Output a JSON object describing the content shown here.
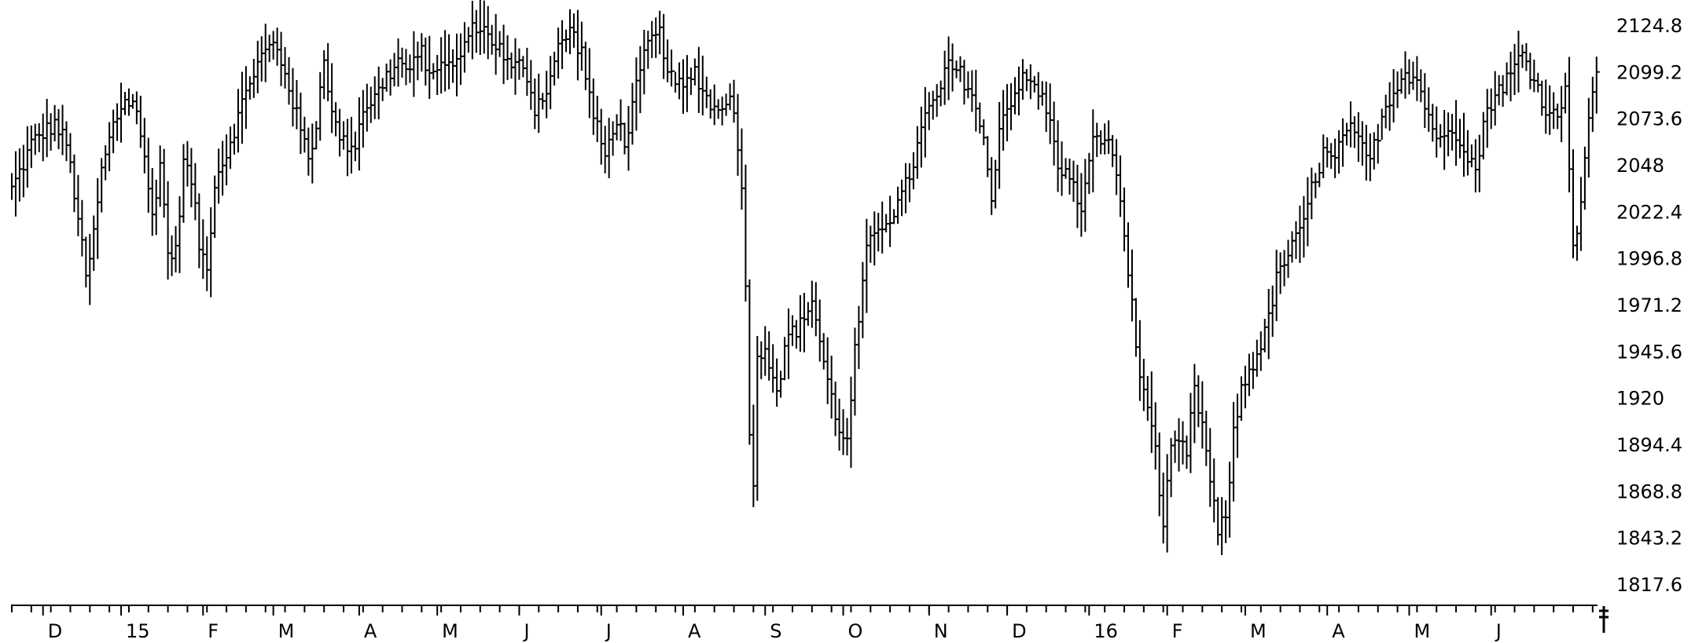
{
  "chart_data": {
    "type": "bar",
    "subtype": "ohlc",
    "title": "",
    "xlabel": "",
    "ylabel": "",
    "ylim": [
      1805,
      2140
    ],
    "grid": false,
    "colors": {
      "bars": "#000000",
      "axis": "#000000",
      "background": "#ffffff"
    },
    "yticks": [
      {
        "value": 2124.8,
        "label": "2124.8"
      },
      {
        "value": 2099.2,
        "label": "2099.2"
      },
      {
        "value": 2073.6,
        "label": "2073.6"
      },
      {
        "value": 2048,
        "label": "2048"
      },
      {
        "value": 2022.4,
        "label": "2022.4"
      },
      {
        "value": 1996.8,
        "label": "1996.8"
      },
      {
        "value": 1971.2,
        "label": "1971.2"
      },
      {
        "value": 1945.6,
        "label": "1945.6"
      },
      {
        "value": 1920,
        "label": "1920"
      },
      {
        "value": 1894.4,
        "label": "1894.4"
      },
      {
        "value": 1868.8,
        "label": "1868.8"
      },
      {
        "value": 1843.2,
        "label": "1843.2"
      },
      {
        "value": 1817.6,
        "label": "1817.6"
      }
    ],
    "xtick_labels": [
      {
        "label": "D",
        "bar": 8
      },
      {
        "label": "15",
        "bar": 28
      },
      {
        "label": "F",
        "bar": 49
      },
      {
        "label": "M",
        "bar": 67
      },
      {
        "label": "A",
        "bar": 89
      },
      {
        "label": "M",
        "bar": 109
      },
      {
        "label": "J",
        "bar": 130
      },
      {
        "label": "J",
        "bar": 151
      },
      {
        "label": "A",
        "bar": 172
      },
      {
        "label": "S",
        "bar": 193
      },
      {
        "label": "O",
        "bar": 213
      },
      {
        "label": "N",
        "bar": 235
      },
      {
        "label": "D",
        "bar": 255
      },
      {
        "label": "16",
        "bar": 276
      },
      {
        "label": "F",
        "bar": 296
      },
      {
        "label": "M",
        "bar": 316
      },
      {
        "label": "A",
        "bar": 337
      },
      {
        "label": "M",
        "bar": 358
      },
      {
        "label": "J",
        "bar": 379
      }
    ],
    "anchors": [
      [
        0,
        2035
      ],
      [
        3,
        2049
      ],
      [
        5,
        2060
      ],
      [
        8,
        2066
      ],
      [
        11,
        2071
      ],
      [
        14,
        2060
      ],
      [
        17,
        2020
      ],
      [
        19,
        1985
      ],
      [
        21,
        2010
      ],
      [
        23,
        2045
      ],
      [
        26,
        2070
      ],
      [
        29,
        2085
      ],
      [
        32,
        2080
      ],
      [
        34,
        2050
      ],
      [
        36,
        2020
      ],
      [
        38,
        2050
      ],
      [
        40,
        2000
      ],
      [
        42,
        2000
      ],
      [
        44,
        2050
      ],
      [
        46,
        2040
      ],
      [
        48,
        2005
      ],
      [
        50,
        1990
      ],
      [
        52,
        2040
      ],
      [
        55,
        2055
      ],
      [
        58,
        2075
      ],
      [
        61,
        2095
      ],
      [
        64,
        2108
      ],
      [
        67,
        2115
      ],
      [
        70,
        2100
      ],
      [
        73,
        2075
      ],
      [
        76,
        2052
      ],
      [
        78,
        2070
      ],
      [
        80,
        2110
      ],
      [
        82,
        2075
      ],
      [
        85,
        2060
      ],
      [
        88,
        2060
      ],
      [
        90,
        2080
      ],
      [
        93,
        2085
      ],
      [
        96,
        2097
      ],
      [
        99,
        2105
      ],
      [
        102,
        2100
      ],
      [
        105,
        2110
      ],
      [
        108,
        2095
      ],
      [
        110,
        2108
      ],
      [
        113,
        2100
      ],
      [
        116,
        2115
      ],
      [
        119,
        2126
      ],
      [
        122,
        2120
      ],
      [
        125,
        2112
      ],
      [
        128,
        2100
      ],
      [
        131,
        2105
      ],
      [
        134,
        2080
      ],
      [
        137,
        2090
      ],
      [
        140,
        2112
      ],
      [
        143,
        2123
      ],
      [
        146,
        2110
      ],
      [
        149,
        2075
      ],
      [
        152,
        2053
      ],
      [
        155,
        2075
      ],
      [
        157,
        2060
      ],
      [
        160,
        2090
      ],
      [
        163,
        2115
      ],
      [
        166,
        2120
      ],
      [
        169,
        2095
      ],
      [
        172,
        2090
      ],
      [
        175,
        2100
      ],
      [
        178,
        2085
      ],
      [
        181,
        2077
      ],
      [
        184,
        2090
      ],
      [
        187,
        2040
      ],
      [
        188,
        1980
      ],
      [
        189,
        1905
      ],
      [
        190,
        1875
      ],
      [
        191,
        1940
      ],
      [
        193,
        1950
      ],
      [
        196,
        1925
      ],
      [
        199,
        1955
      ],
      [
        202,
        1960
      ],
      [
        205,
        1975
      ],
      [
        208,
        1940
      ],
      [
        211,
        1910
      ],
      [
        214,
        1895
      ],
      [
        216,
        1945
      ],
      [
        219,
        2000
      ],
      [
        222,
        2015
      ],
      [
        225,
        2020
      ],
      [
        228,
        2030
      ],
      [
        231,
        2050
      ],
      [
        234,
        2075
      ],
      [
        237,
        2085
      ],
      [
        240,
        2103
      ],
      [
        243,
        2098
      ],
      [
        246,
        2088
      ],
      [
        249,
        2060
      ],
      [
        251,
        2030
      ],
      [
        253,
        2070
      ],
      [
        256,
        2085
      ],
      [
        259,
        2095
      ],
      [
        262,
        2092
      ],
      [
        265,
        2080
      ],
      [
        268,
        2050
      ],
      [
        271,
        2040
      ],
      [
        274,
        2025
      ],
      [
        277,
        2060
      ],
      [
        280,
        2065
      ],
      [
        283,
        2045
      ],
      [
        285,
        2010
      ],
      [
        287,
        1970
      ],
      [
        289,
        1930
      ],
      [
        291,
        1920
      ],
      [
        293,
        1890
      ],
      [
        295,
        1850
      ],
      [
        297,
        1890
      ],
      [
        299,
        1895
      ],
      [
        301,
        1890
      ],
      [
        303,
        1925
      ],
      [
        305,
        1905
      ],
      [
        307,
        1875
      ],
      [
        309,
        1845
      ],
      [
        311,
        1855
      ],
      [
        313,
        1900
      ],
      [
        315,
        1925
      ],
      [
        318,
        1940
      ],
      [
        321,
        1955
      ],
      [
        324,
        1985
      ],
      [
        327,
        2000
      ],
      [
        330,
        2010
      ],
      [
        333,
        2035
      ],
      [
        336,
        2055
      ],
      [
        339,
        2050
      ],
      [
        342,
        2070
      ],
      [
        345,
        2060
      ],
      [
        348,
        2050
      ],
      [
        351,
        2075
      ],
      [
        354,
        2090
      ],
      [
        357,
        2100
      ],
      [
        360,
        2095
      ],
      [
        363,
        2075
      ],
      [
        366,
        2060
      ],
      [
        369,
        2070
      ],
      [
        372,
        2060
      ],
      [
        375,
        2045
      ],
      [
        378,
        2080
      ],
      [
        381,
        2090
      ],
      [
        384,
        2098
      ],
      [
        387,
        2110
      ],
      [
        390,
        2095
      ],
      [
        393,
        2080
      ],
      [
        396,
        2073
      ],
      [
        398,
        2095
      ],
      [
        399,
        2050
      ],
      [
        400,
        2000
      ],
      [
        402,
        2030
      ],
      [
        404,
        2075
      ],
      [
        406,
        2095
      ]
    ]
  }
}
